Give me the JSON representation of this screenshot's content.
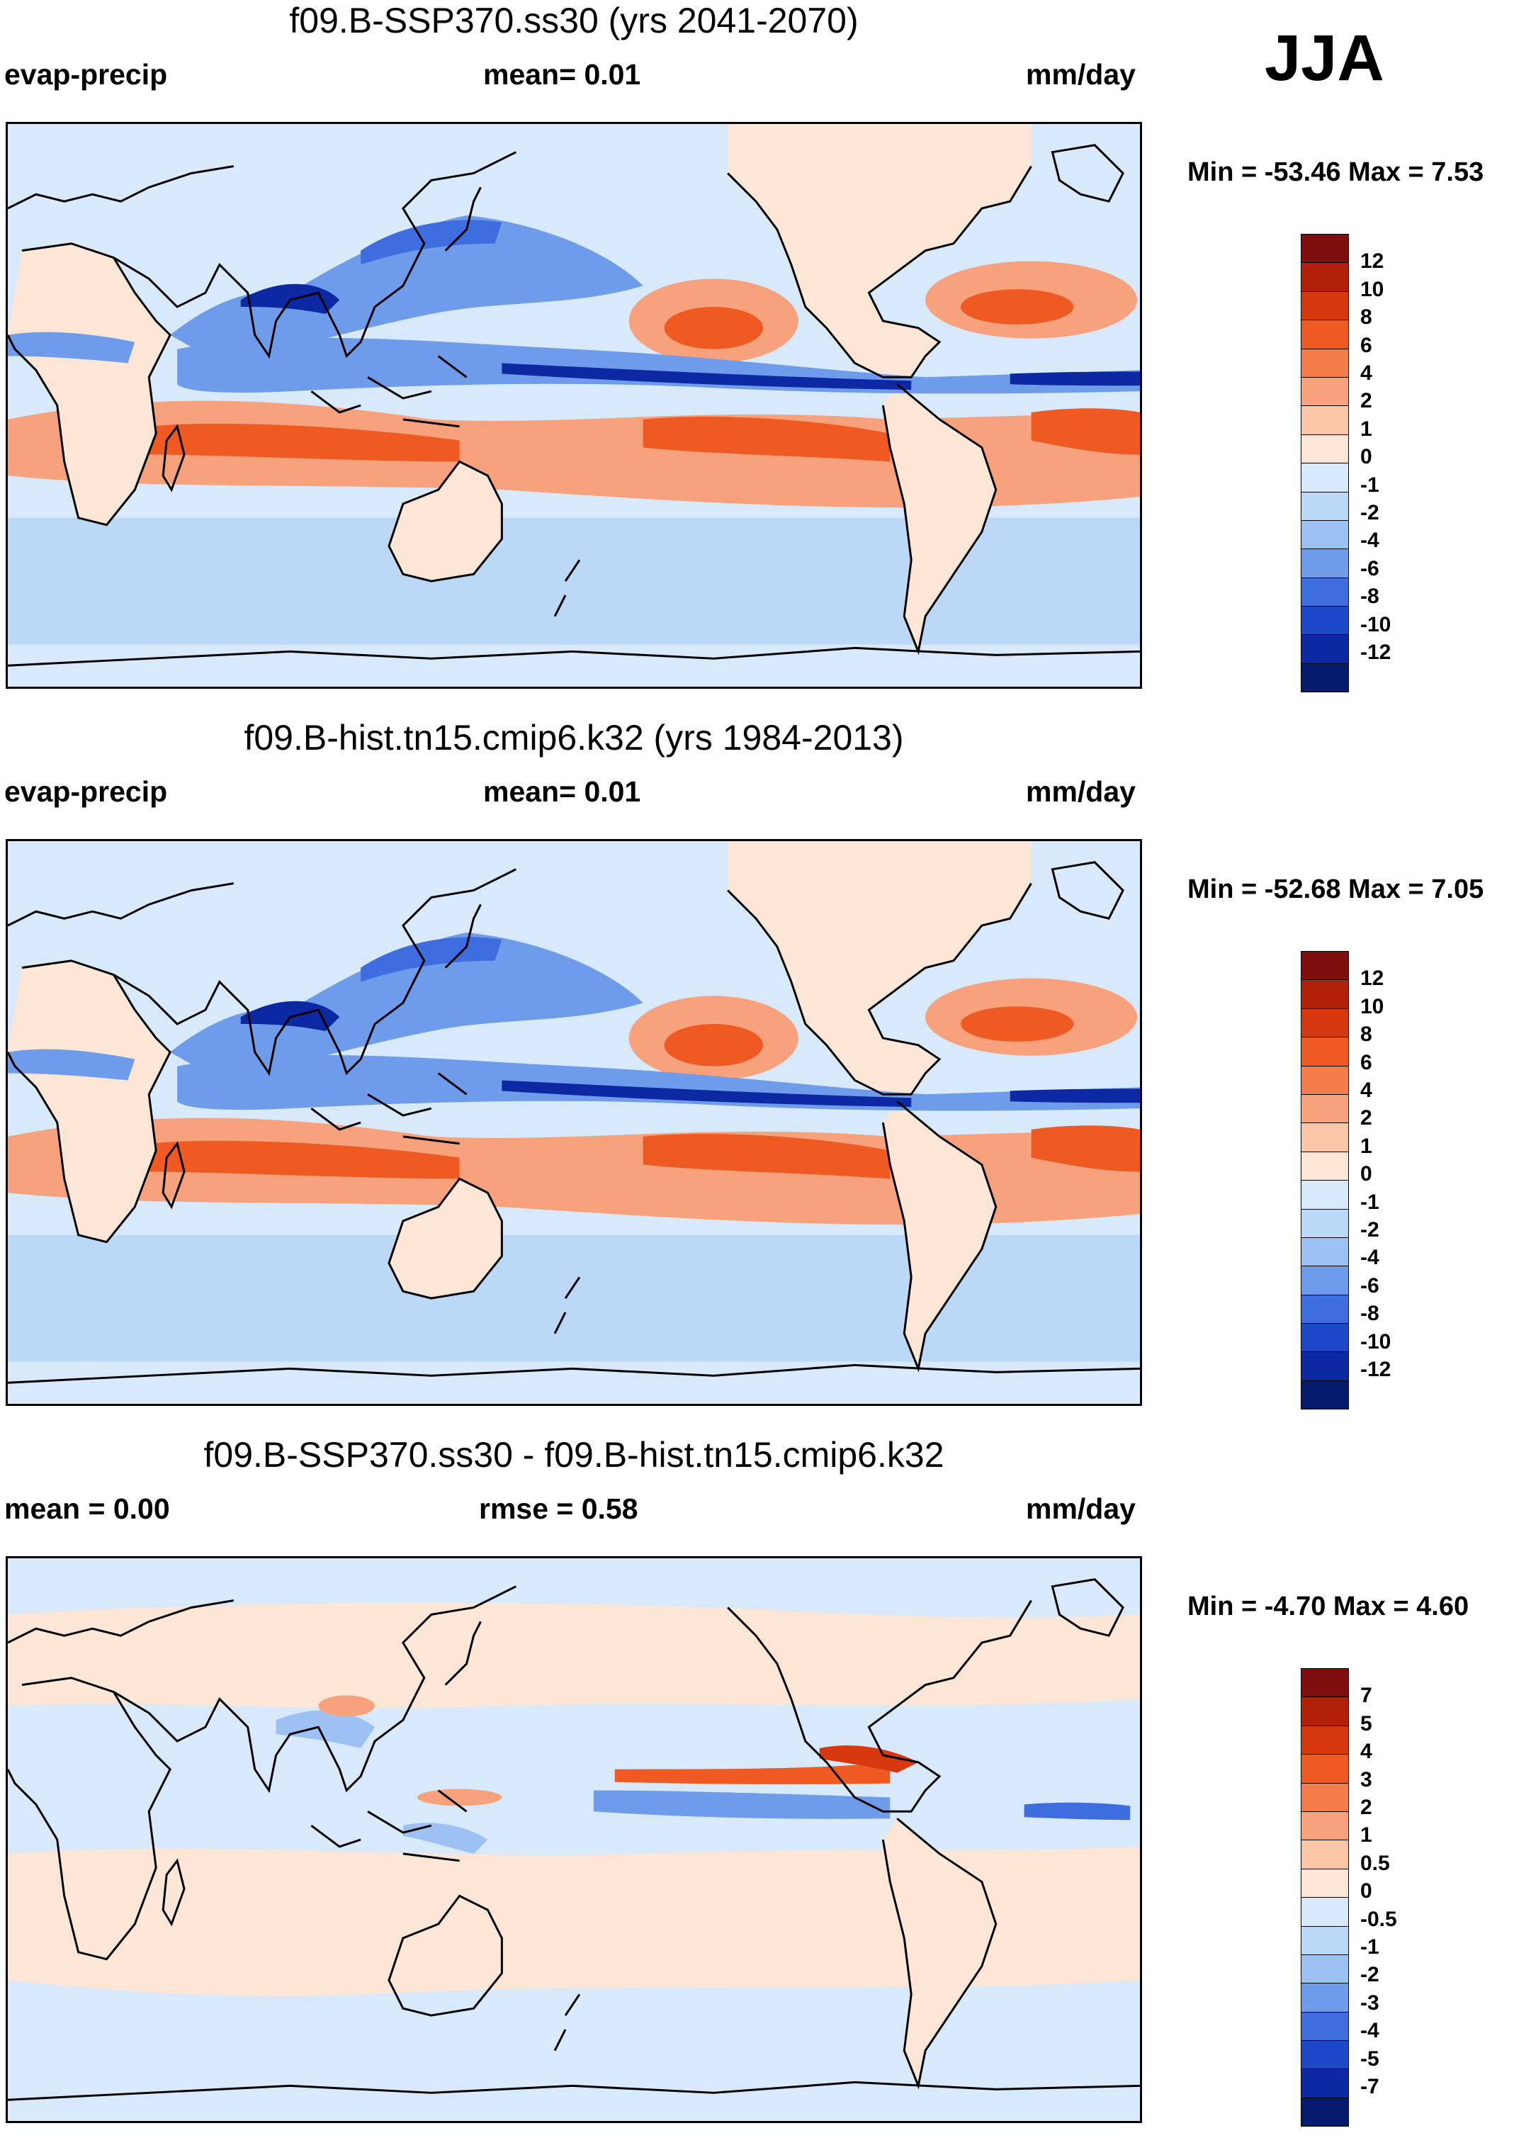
{
  "season": "JJA",
  "panels": [
    {
      "title": "f09.B-SSP370.ss30 (yrs 2041-2070)",
      "variable": "evap-precip",
      "stat1": "mean=   0.01",
      "stat2": "",
      "units": "mm/day",
      "minmax": "Min = -53.46 Max =   7.53",
      "colorbar": {
        "levels": [
          "12",
          "10",
          "8",
          "6",
          "4",
          "2",
          "1",
          "0",
          "-1",
          "-2",
          "-4",
          "-6",
          "-8",
          "-10",
          "-12"
        ],
        "colors": [
          "#7f0f0f",
          "#b3200a",
          "#d7380f",
          "#ef5a23",
          "#f47c4a",
          "#f8a27d",
          "#fbc6a8",
          "#fde6d6",
          "#d8e9fb",
          "#bcd8f7",
          "#9cc1f2",
          "#6f9cea",
          "#3e6ddf",
          "#1d47c9",
          "#0d28a3",
          "#061a6e"
        ]
      },
      "map_kind": "base"
    },
    {
      "title": "f09.B-hist.tn15.cmip6.k32 (yrs 1984-2013)",
      "variable": "evap-precip",
      "stat1": "mean=   0.01",
      "stat2": "",
      "units": "mm/day",
      "minmax": "Min = -52.68 Max =   7.05",
      "colorbar": {
        "levels": [
          "12",
          "10",
          "8",
          "6",
          "4",
          "2",
          "1",
          "0",
          "-1",
          "-2",
          "-4",
          "-6",
          "-8",
          "-10",
          "-12"
        ],
        "colors": [
          "#7f0f0f",
          "#b3200a",
          "#d7380f",
          "#ef5a23",
          "#f47c4a",
          "#f8a27d",
          "#fbc6a8",
          "#fde6d6",
          "#d8e9fb",
          "#bcd8f7",
          "#9cc1f2",
          "#6f9cea",
          "#3e6ddf",
          "#1d47c9",
          "#0d28a3",
          "#061a6e"
        ]
      },
      "map_kind": "base"
    },
    {
      "title": "f09.B-SSP370.ss30 - f09.B-hist.tn15.cmip6.k32",
      "variable": "mean =   0.00",
      "stat1": "rmse =   0.58",
      "stat2": "",
      "units": "mm/day",
      "minmax": "Min =  -4.70 Max =   4.60",
      "colorbar": {
        "levels": [
          "7",
          "5",
          "4",
          "3",
          "2",
          "1",
          "0.5",
          "0",
          "-0.5",
          "-1",
          "-2",
          "-3",
          "-4",
          "-5",
          "-7"
        ],
        "colors": [
          "#7f0f0f",
          "#b3200a",
          "#d7380f",
          "#ef5a23",
          "#f47c4a",
          "#f8a27d",
          "#fbc6a8",
          "#fde6d6",
          "#d8e9fb",
          "#bcd8f7",
          "#9cc1f2",
          "#6f9cea",
          "#3e6ddf",
          "#1d47c9",
          "#0d28a3",
          "#061a6e"
        ]
      },
      "map_kind": "diff"
    }
  ]
}
